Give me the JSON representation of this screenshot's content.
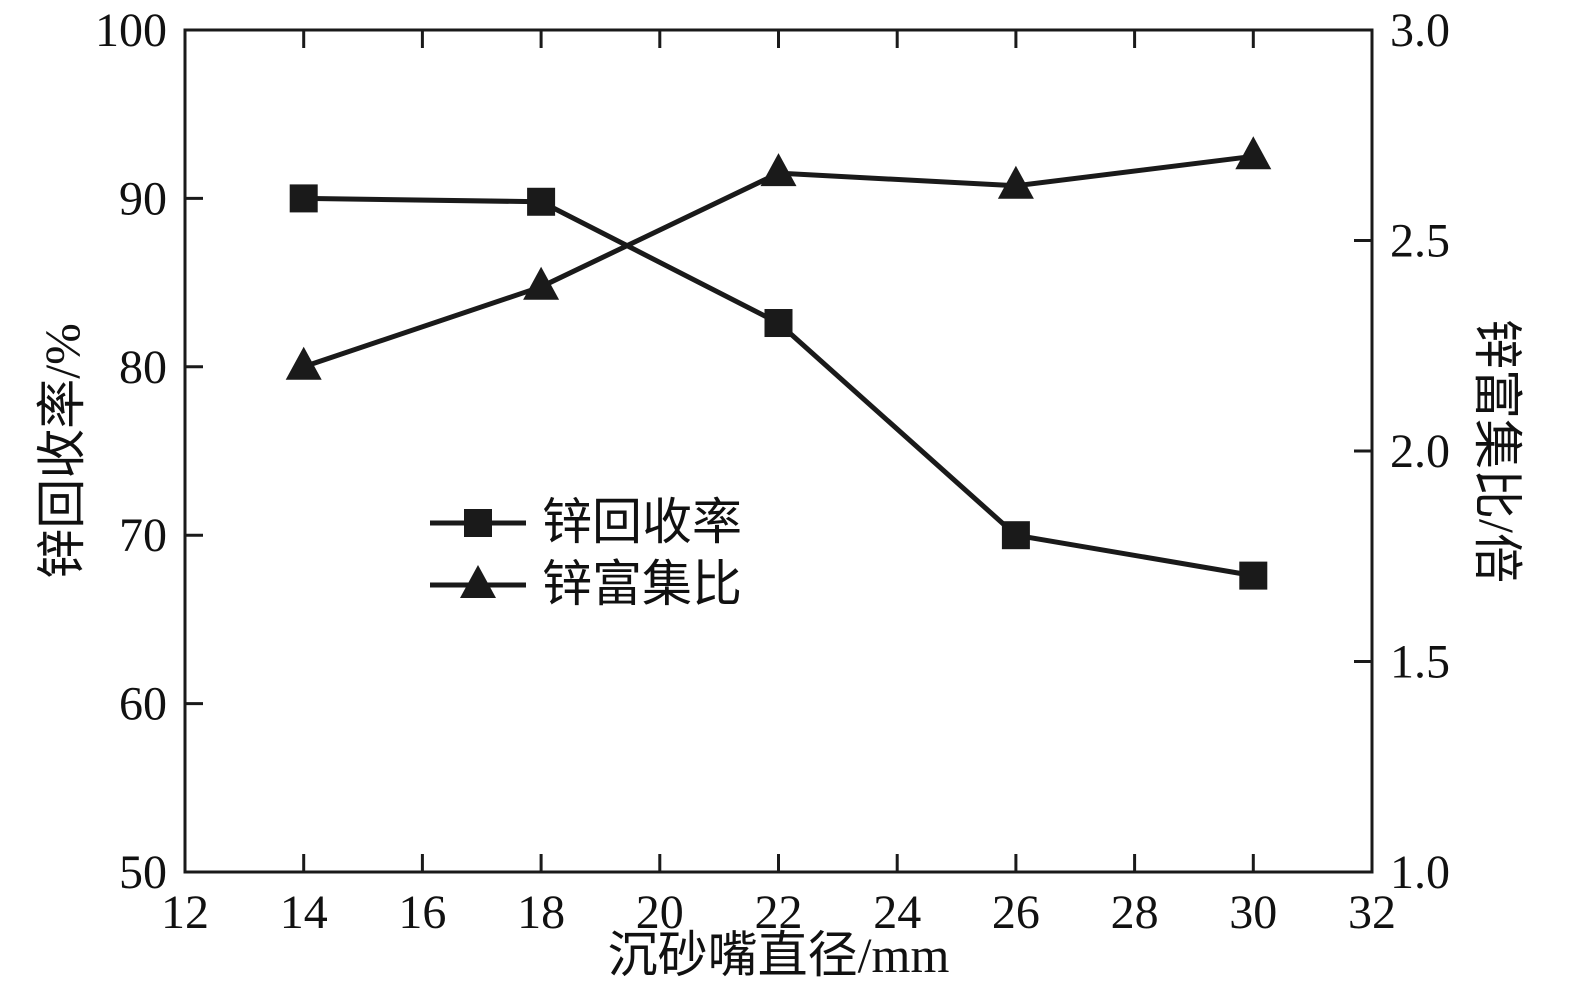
{
  "chart_data": {
    "type": "line",
    "title": "",
    "xlabel": "沉砂嘴直径/mm",
    "ylabel_left": "锌回收率/%",
    "ylabel_right": "锌富集比/倍",
    "xlim": [
      12,
      32
    ],
    "ylim_left": [
      50,
      100
    ],
    "ylim_right": [
      1.0,
      3.0
    ],
    "x_ticks": [
      "12",
      "14",
      "16",
      "18",
      "20",
      "22",
      "24",
      "26",
      "28",
      "30",
      "32"
    ],
    "y_left_ticks": [
      "50",
      "60",
      "70",
      "80",
      "90",
      "100"
    ],
    "y_right_ticks": [
      "1.0",
      "1.5",
      "2.0",
      "2.5",
      "3.0"
    ],
    "grid": false,
    "legend_position": "inside-center-left",
    "line_color": "#1a1a1a",
    "series": [
      {
        "name": "锌回收率",
        "axis": "left",
        "marker": "square",
        "x": [
          14,
          18,
          22,
          26,
          30
        ],
        "values": [
          90.0,
          89.8,
          82.6,
          70.0,
          67.6
        ]
      },
      {
        "name": "锌富集比",
        "axis": "right",
        "marker": "triangle",
        "x": [
          14,
          18,
          22,
          26,
          30
        ],
        "values": [
          2.2,
          2.39,
          2.66,
          2.63,
          2.7
        ]
      }
    ]
  }
}
